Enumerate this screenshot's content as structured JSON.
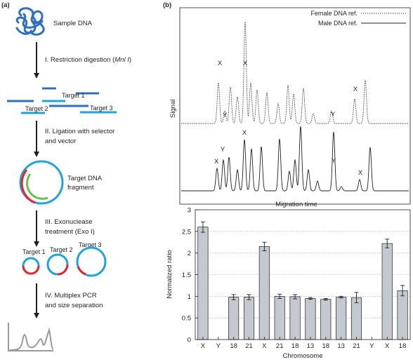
{
  "panel_a": {
    "label": "(a)",
    "sample": "Sample DNA",
    "step1_prefix": "I. Restriction digestion (",
    "step1_enzyme": "Mnl I",
    "step1_suffix": ")",
    "targets": [
      "Target 1",
      "Target 2",
      "Target 3"
    ],
    "step2_line1": "II. Ligation with selector",
    "step2_line2": "and vector",
    "circle_label_line1": "Target DNA",
    "circle_label_line2": "fragment",
    "step3_line1": "III. Exonuclease",
    "step3_line2": "treatment (Exo I)",
    "step4_line1": "IV. Multiplex PCR",
    "step4_line2": "and size separation",
    "colors": {
      "dna_blue": "#2e6fc0",
      "light_blue": "#1fa3e0",
      "red": "#e8262b",
      "green": "#6cbf4b",
      "arrow": "#231f20",
      "peaks": "#9a9a9a"
    }
  },
  "panel_b": {
    "label": "(b)",
    "electropherogram": {
      "ylabel": "Signal",
      "legend": [
        {
          "name": "Female DNA ref.",
          "style": "dotted"
        },
        {
          "name": "Male DNA ref.",
          "style": "solid"
        }
      ],
      "female_peak_labels": [
        "X",
        "X",
        "Y",
        "Y",
        "X"
      ],
      "male_peak_labels": [
        "X",
        "Y",
        "X",
        "Y",
        "X"
      ]
    },
    "chart_data": {
      "type": "bar",
      "title": "Migration time",
      "xlabel": "Chromosome",
      "ylabel": "Normalized ratio",
      "categories": [
        "X",
        "Y",
        "18",
        "21",
        "X",
        "21",
        "18",
        "13",
        "18",
        "13",
        "21",
        "Y",
        "X",
        "18"
      ],
      "values": [
        2.6,
        0,
        0.98,
        0.98,
        2.15,
        1.0,
        0.99,
        0.95,
        0.93,
        0.98,
        0.97,
        0,
        2.22,
        1.13
      ],
      "errors": [
        0.12,
        0,
        0.06,
        0.06,
        0.1,
        0.05,
        0.05,
        0.02,
        0.02,
        0.02,
        0.12,
        0,
        0.1,
        0.12
      ],
      "ylim": [
        0,
        3
      ],
      "yticks": [
        "0",
        "0.5",
        "1",
        "1.5",
        "2",
        "2.5",
        "3"
      ],
      "grid": true
    }
  }
}
